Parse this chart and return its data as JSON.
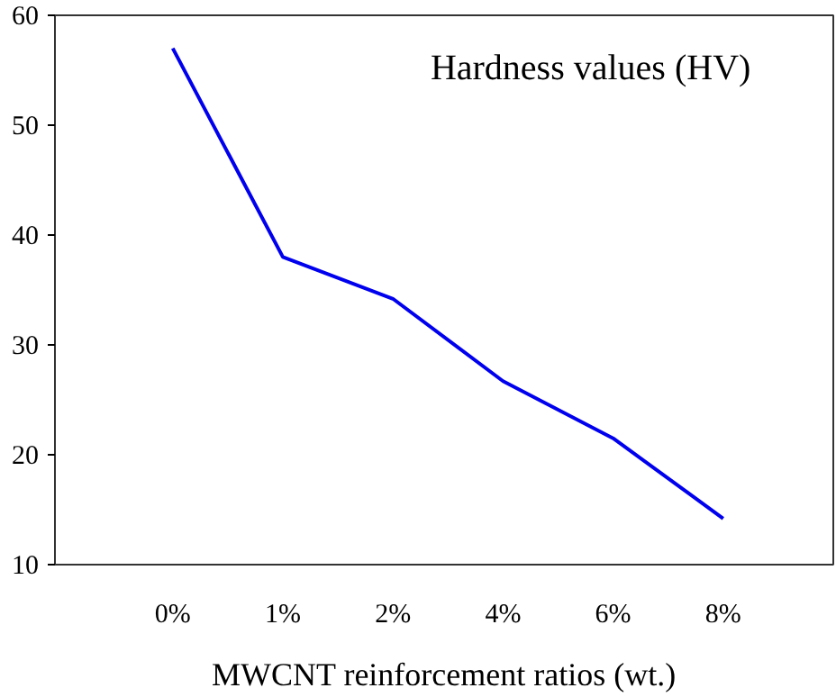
{
  "chart_data": {
    "type": "line",
    "xlabel": "MWCNT reinforcement ratios (wt.)",
    "annotations": [
      "Hardness values (HV)"
    ],
    "categories": [
      "0%",
      "1%",
      "2%",
      "4%",
      "6%",
      "8%"
    ],
    "series": [
      {
        "color": "#0000ee",
        "values": [
          57,
          38,
          34.2,
          26.7,
          21.5,
          14.2
        ]
      }
    ],
    "ylim": [
      10,
      60
    ],
    "yticks": [
      10,
      20,
      30,
      40,
      50,
      60
    ],
    "grid": false,
    "marker": "none",
    "line_style": "solid"
  }
}
